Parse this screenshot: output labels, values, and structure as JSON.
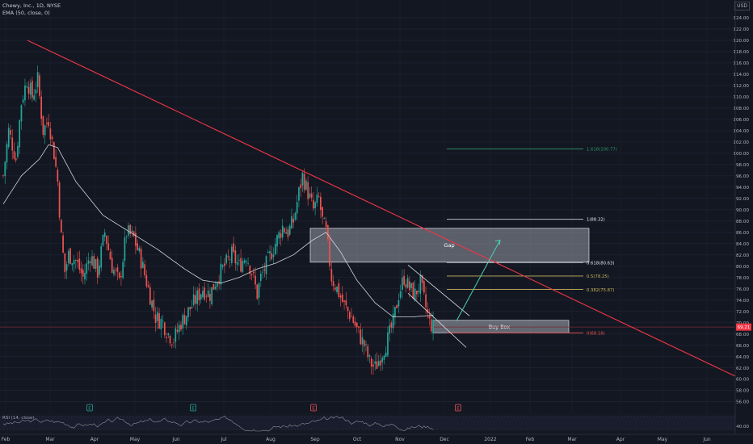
{
  "legend": {
    "symbol": "Chewy, Inc., 1D, NYSE",
    "indicator": "EMA (50, close, 0)"
  },
  "rsi_label": "RSI (14, close)",
  "currency": "USD",
  "colors": {
    "background": "#131722",
    "bull": "#26a69a",
    "bear": "#ef5350",
    "ema": "#d1d4dc",
    "trendline": "#f23645",
    "fib_gold": "#c9b458",
    "fib_green": "#2b9a6a",
    "arrow": "#4dd0b0"
  },
  "chart_data": {
    "type": "candlestick",
    "title": "Chewy, Inc., 1D, NYSE",
    "x_tick_labels": [
      "Feb",
      "Mar",
      "Apr",
      "May",
      "Jun",
      "Jul",
      "Aug",
      "Sep",
      "Oct",
      "Nov",
      "Dec",
      "2022",
      "Feb",
      "Mar",
      "Apr",
      "May",
      "Jun"
    ],
    "y_tick_labels": [
      "56.00",
      "58.00",
      "60.00",
      "62.00",
      "64.00",
      "66.00",
      "68.00",
      "70.00",
      "72.00",
      "74.00",
      "76.00",
      "78.00",
      "80.00",
      "82.00",
      "84.00",
      "86.00",
      "88.00",
      "90.00",
      "92.00",
      "94.00",
      "96.00",
      "98.00",
      "100.00",
      "102.00",
      "104.00",
      "106.00",
      "108.00",
      "110.00",
      "112.00",
      "114.00",
      "116.00",
      "118.00",
      "120.00",
      "122.00",
      "124.00"
    ],
    "ylim": [
      54.5,
      126
    ],
    "last_price": "69.21",
    "price_anchors": [
      [
        0,
        96
      ],
      [
        3,
        104
      ],
      [
        7,
        99
      ],
      [
        10,
        109
      ],
      [
        13,
        113
      ],
      [
        16,
        110
      ],
      [
        19,
        113
      ],
      [
        22,
        104
      ],
      [
        25,
        106
      ],
      [
        28,
        100
      ],
      [
        30,
        95
      ],
      [
        32,
        85
      ],
      [
        34,
        79
      ],
      [
        36,
        82
      ],
      [
        40,
        81
      ],
      [
        44,
        78
      ],
      [
        48,
        82
      ],
      [
        52,
        79
      ],
      [
        56,
        86
      ],
      [
        60,
        80
      ],
      [
        64,
        77
      ],
      [
        68,
        86
      ],
      [
        72,
        85
      ],
      [
        76,
        81
      ],
      [
        80,
        76
      ],
      [
        84,
        71
      ],
      [
        88,
        70
      ],
      [
        91,
        68
      ],
      [
        94,
        67
      ],
      [
        98,
        70
      ],
      [
        102,
        72
      ],
      [
        106,
        74
      ],
      [
        110,
        76
      ],
      [
        114,
        75
      ],
      [
        118,
        78
      ],
      [
        122,
        80
      ],
      [
        126,
        82
      ],
      [
        130,
        80
      ],
      [
        134,
        82
      ],
      [
        137,
        79
      ],
      [
        140,
        75
      ],
      [
        142,
        78
      ],
      [
        146,
        81
      ],
      [
        150,
        84
      ],
      [
        154,
        87
      ],
      [
        157,
        86
      ],
      [
        160,
        88
      ],
      [
        163,
        93
      ],
      [
        165,
        96
      ],
      [
        168,
        93
      ],
      [
        171,
        90
      ],
      [
        174,
        92
      ],
      [
        176,
        88
      ],
      [
        178,
        86
      ],
      [
        181,
        78
      ],
      [
        184,
        76
      ],
      [
        188,
        73
      ],
      [
        192,
        71
      ],
      [
        196,
        68
      ],
      [
        199,
        66
      ],
      [
        202,
        63
      ],
      [
        205,
        62
      ],
      [
        208,
        64
      ],
      [
        212,
        67
      ],
      [
        215,
        70
      ],
      [
        218,
        75
      ],
      [
        221,
        78
      ],
      [
        224,
        76
      ],
      [
        227,
        75
      ],
      [
        230,
        77
      ],
      [
        232,
        74
      ],
      [
        235,
        70
      ],
      [
        237,
        69.2
      ]
    ],
    "ema_anchors": [
      [
        0,
        91
      ],
      [
        10,
        96
      ],
      [
        20,
        99
      ],
      [
        25,
        101.5
      ],
      [
        30,
        101
      ],
      [
        40,
        95
      ],
      [
        55,
        89
      ],
      [
        70,
        86
      ],
      [
        85,
        83
      ],
      [
        100,
        79.5
      ],
      [
        110,
        77.5
      ],
      [
        120,
        77
      ],
      [
        130,
        78
      ],
      [
        140,
        79.5
      ],
      [
        150,
        80.5
      ],
      [
        160,
        82
      ],
      [
        170,
        84.5
      ],
      [
        178,
        86
      ],
      [
        186,
        82.5
      ],
      [
        195,
        77.5
      ],
      [
        205,
        73.5
      ],
      [
        215,
        71
      ],
      [
        225,
        71
      ],
      [
        237,
        71.3
      ]
    ],
    "trendline": [
      [
        120.0,
        34
      ],
      [
        60.5,
        910
      ]
    ],
    "gap_zone": {
      "label": "Gap",
      "top": 86.7,
      "bottom": 80.7
    },
    "buy_box": {
      "label": "Buy Box",
      "top": 70.4,
      "bottom": 68.2
    },
    "fibonacci": [
      {
        "label": "1.618(100.77)",
        "value": 100.77
      },
      {
        "label": "1(88.32)",
        "value": 88.32
      },
      {
        "label": "0.618(80.63)",
        "value": 80.63
      },
      {
        "label": "0.5(78.25)",
        "value": 78.25
      },
      {
        "label": "0.382(75.87)",
        "value": 75.87
      },
      {
        "label": "0(68.18)",
        "value": 68.18
      }
    ],
    "event_markers": [
      "E",
      "E",
      "E",
      "E"
    ],
    "rsi": {
      "ylim": [
        20,
        80
      ],
      "tick": "40.00"
    }
  }
}
